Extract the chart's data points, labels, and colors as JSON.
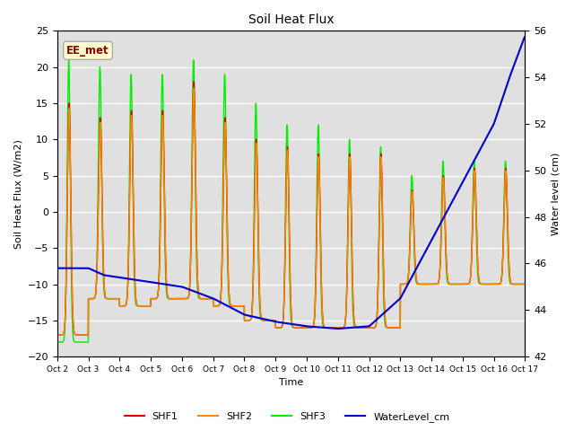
{
  "title": "Soil Heat Flux",
  "xlabel": "Time",
  "ylabel_left": "Soil Heat Flux (W/m2)",
  "ylabel_right": "Water level (cm)",
  "ylim_left": [
    -20,
    25
  ],
  "ylim_right": [
    42,
    56
  ],
  "background_color": "#ffffff",
  "plot_bg_color": "#e0e0e0",
  "annotation_label": "EE_met",
  "annotation_color": "#880000",
  "annotation_bg": "#ffffcc",
  "annotation_edge": "#aaaaaa",
  "legend_entries": [
    "SHF1",
    "SHF2",
    "SHF3",
    "WaterLevel_cm"
  ],
  "line_colors": [
    "#dd0000",
    "#ff8800",
    "#00ee00",
    "#0000cc"
  ],
  "x_tick_labels": [
    "Oct 2",
    "Oct 3",
    "Oct 4",
    "Oct 5",
    "Oct 6",
    "Oct 7",
    "Oct 8",
    "Oct 9",
    "Oct 10",
    "Oct 11",
    "Oct 12",
    "Oct 13",
    "Oct 14",
    "Oct 15",
    "Oct 16",
    "Oct 17"
  ],
  "day_peak1": [
    15,
    13,
    14,
    14,
    18,
    13,
    10,
    9,
    8,
    8,
    8,
    3,
    5,
    6,
    6
  ],
  "day_trough1": [
    -17,
    -12,
    -13,
    -12,
    -12,
    -13,
    -15,
    -16,
    -16,
    -16,
    -16,
    -10,
    -10,
    -10,
    -10
  ],
  "day_peak3": [
    21,
    20,
    19,
    19,
    21,
    19,
    15,
    12,
    12,
    10,
    9,
    5,
    7,
    7,
    7
  ],
  "day_trough3": [
    -18,
    -12,
    -13,
    -12,
    -12,
    -13,
    -15,
    -16,
    -16,
    -16,
    -16,
    -10,
    -10,
    -10,
    -10
  ],
  "water_t": [
    0,
    1,
    1.5,
    4,
    5,
    6,
    7,
    8,
    9,
    10,
    11,
    12,
    13,
    14,
    14.5,
    15
  ],
  "water_v_cm": [
    45.8,
    45.8,
    45.5,
    45,
    44.5,
    43.8,
    43.5,
    43.3,
    43.2,
    43.3,
    44.5,
    47,
    49.5,
    52,
    54,
    55.8
  ]
}
